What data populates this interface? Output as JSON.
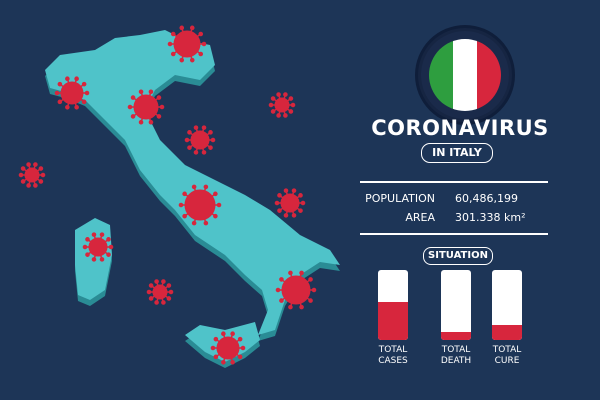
{
  "header": {
    "title": "CORONAVIRUS",
    "subtitle": "IN ITALY"
  },
  "flag": {
    "colors": [
      "#2e9e3f",
      "#ffffff",
      "#d7263d"
    ]
  },
  "stats": {
    "population_label": "POPULATION",
    "population_value": "60,486,199",
    "area_label": "AREA",
    "area_value": "301.338 km²"
  },
  "situation": {
    "title": "SITUATION",
    "bars": [
      {
        "label": "TOTAL\nCASES",
        "fraction": 0.55
      },
      {
        "label": "TOTAL\nDEATH",
        "fraction": 0.12
      },
      {
        "label": "TOTAL\nCURE",
        "fraction": 0.22
      }
    ]
  },
  "colors": {
    "background": "#1d3557",
    "map": "#4fc3c9",
    "map_shadow": "#2a8c95",
    "virus": "#d7263d",
    "bar_fill": "#d7263d"
  }
}
